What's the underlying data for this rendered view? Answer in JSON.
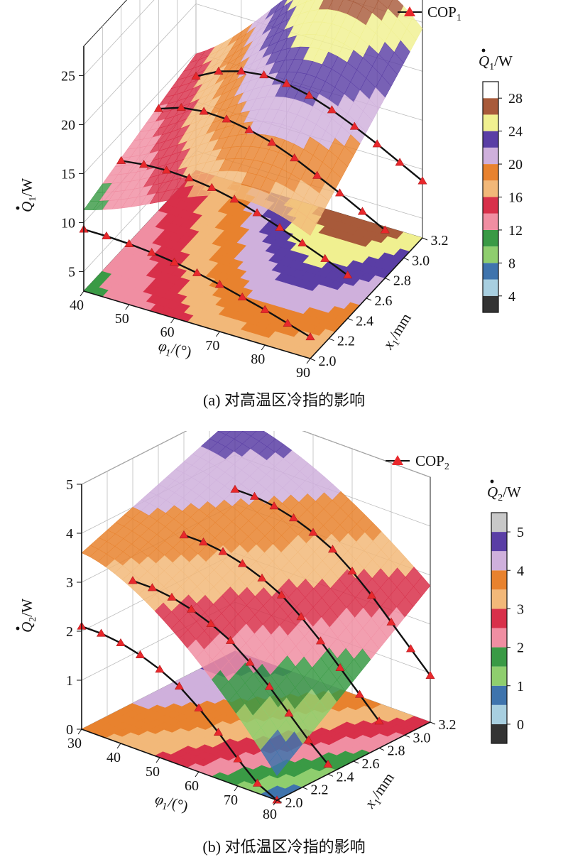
{
  "chart_data": [
    {
      "type": "surface-3d",
      "panel_label": "(a)",
      "caption": "(a) 对高温区冷指的影响",
      "x_axis": {
        "name": "φ1",
        "label_main": "φ",
        "label_sub": "1",
        "label_unit": "/(°)",
        "ticks": [
          "40",
          "50",
          "60",
          "70",
          "80",
          "90"
        ],
        "range": [
          40,
          90
        ]
      },
      "y_axis": {
        "name": "x1",
        "label_main": "x",
        "label_sub": "1",
        "label_unit": "/mm",
        "ticks": [
          "2.0",
          "2.2",
          "2.4",
          "2.6",
          "2.8",
          "3.0",
          "3.2"
        ],
        "range": [
          2.0,
          3.2
        ]
      },
      "z_axis": {
        "name": "Q1",
        "label_main": "Q",
        "label_sub": "1",
        "label_unit": "/W",
        "ticks": [
          "5",
          "10",
          "15",
          "20",
          "25"
        ],
        "range": [
          3,
          28
        ]
      },
      "legend": {
        "marker": "triangle",
        "color": "#e8282c",
        "label_main": "COP",
        "label_sub": "1",
        "position": "top-right"
      },
      "colorbar": {
        "title_main": "Q",
        "title_sub": "1",
        "title_unit": "/W",
        "levels": [
          2,
          4,
          6,
          8,
          10,
          12,
          14,
          16,
          18,
          20,
          22,
          24,
          26,
          28,
          30
        ],
        "tick_labels": [
          "4",
          "8",
          "12",
          "16",
          "20",
          "24",
          "28"
        ],
        "colors": [
          "#333333",
          "#a8cfe0",
          "#3f74ad",
          "#8fce6e",
          "#3a9a45",
          "#f08ea2",
          "#d8304a",
          "#f2b879",
          "#e8822e",
          "#cfb0dc",
          "#5a3ea5",
          "#f0f090",
          "#a85a3a",
          "#ffffff"
        ]
      },
      "cop_curves": [
        {
          "x1": 2.0,
          "phi": [
            40,
            45,
            50,
            55,
            60,
            65,
            70,
            75,
            80,
            85,
            90
          ],
          "cop_z": [
            9.3,
            9.3,
            9.2,
            9.0,
            8.7,
            8.3,
            7.8,
            7.2,
            6.6,
            5.9,
            5.2
          ]
        },
        {
          "x1": 2.4,
          "phi": [
            40,
            45,
            50,
            55,
            60,
            65,
            70,
            75,
            80,
            85,
            90
          ],
          "cop_z": [
            12.2,
            12.5,
            12.6,
            12.5,
            12.2,
            11.7,
            11.0,
            10.2,
            9.3,
            8.4,
            7.4
          ]
        },
        {
          "x1": 2.8,
          "phi": [
            40,
            45,
            50,
            55,
            60,
            65,
            70,
            75,
            80,
            85,
            90
          ],
          "cop_z": [
            13.4,
            14.2,
            14.5,
            14.4,
            14.0,
            13.4,
            12.5,
            11.4,
            10.3,
            9.1,
            7.9
          ]
        },
        {
          "x1": 3.2,
          "phi": [
            40,
            45,
            50,
            55,
            60,
            65,
            70,
            75,
            80,
            85,
            90
          ],
          "cop_z": [
            12.6,
            13.8,
            14.5,
            14.8,
            14.6,
            14.1,
            13.3,
            12.3,
            11.2,
            10.0,
            8.8
          ]
        }
      ]
    },
    {
      "type": "surface-3d",
      "panel_label": "(b)",
      "caption": "(b) 对低温区冷指的影响",
      "x_axis": {
        "name": "φ1",
        "label_main": "φ",
        "label_sub": "1",
        "label_unit": "/(°)",
        "ticks": [
          "30",
          "40",
          "50",
          "60",
          "70",
          "80"
        ],
        "range": [
          30,
          80
        ]
      },
      "y_axis": {
        "name": "x1",
        "label_main": "x",
        "label_sub": "1",
        "label_unit": "/mm",
        "ticks": [
          "2.0",
          "2.2",
          "2.4",
          "2.6",
          "2.8",
          "3.0",
          "3.2"
        ],
        "range": [
          2.0,
          3.2
        ]
      },
      "z_axis": {
        "name": "Q2",
        "label_main": "Q",
        "label_sub": "2",
        "label_unit": "/W",
        "ticks": [
          "0",
          "1",
          "2",
          "3",
          "4",
          "5"
        ],
        "range": [
          0,
          5
        ]
      },
      "legend": {
        "marker": "triangle",
        "color": "#e8282c",
        "label_main": "COP",
        "label_sub": "2",
        "position": "top-right"
      },
      "colorbar": {
        "title_main": "Q",
        "title_sub": "2",
        "title_unit": "/W",
        "levels": [
          -0.5,
          0,
          0.5,
          1,
          1.5,
          2,
          2.5,
          3,
          3.5,
          4,
          4.5,
          5,
          5.5
        ],
        "tick_labels": [
          "0",
          "1",
          "2",
          "3",
          "4",
          "5"
        ],
        "colors": [
          "#333333",
          "#a8cfe0",
          "#3f74ad",
          "#8fce6e",
          "#3a9a45",
          "#f08ea2",
          "#d8304a",
          "#f2b879",
          "#e8822e",
          "#cfb0dc",
          "#5a3ea5",
          "#c8c8c8"
        ]
      },
      "cop_curves": [
        {
          "x1": 2.0,
          "phi": [
            30,
            35,
            40,
            45,
            50,
            55,
            60,
            65,
            70,
            75,
            80
          ],
          "cop_z": [
            2.1,
            2.1,
            2.05,
            1.95,
            1.8,
            1.6,
            1.3,
            0.95,
            0.55,
            0.2,
            0.0
          ]
        },
        {
          "x1": 2.4,
          "phi": [
            30,
            35,
            40,
            45,
            50,
            55,
            60,
            65,
            70,
            75,
            80
          ],
          "cop_z": [
            2.5,
            2.5,
            2.45,
            2.35,
            2.2,
            2.0,
            1.7,
            1.35,
            0.95,
            0.55,
            0.2
          ]
        },
        {
          "x1": 2.8,
          "phi": [
            30,
            35,
            40,
            45,
            50,
            55,
            60,
            65,
            70,
            75,
            80
          ],
          "cop_z": [
            2.9,
            2.9,
            2.85,
            2.75,
            2.6,
            2.4,
            2.1,
            1.75,
            1.35,
            0.95,
            0.55
          ]
        },
        {
          "x1": 3.2,
          "phi": [
            30,
            35,
            40,
            45,
            50,
            55,
            60,
            65,
            70,
            75,
            80
          ],
          "cop_z": [
            3.3,
            3.3,
            3.25,
            3.15,
            3.0,
            2.8,
            2.5,
            2.15,
            1.75,
            1.35,
            0.95
          ]
        }
      ]
    }
  ]
}
